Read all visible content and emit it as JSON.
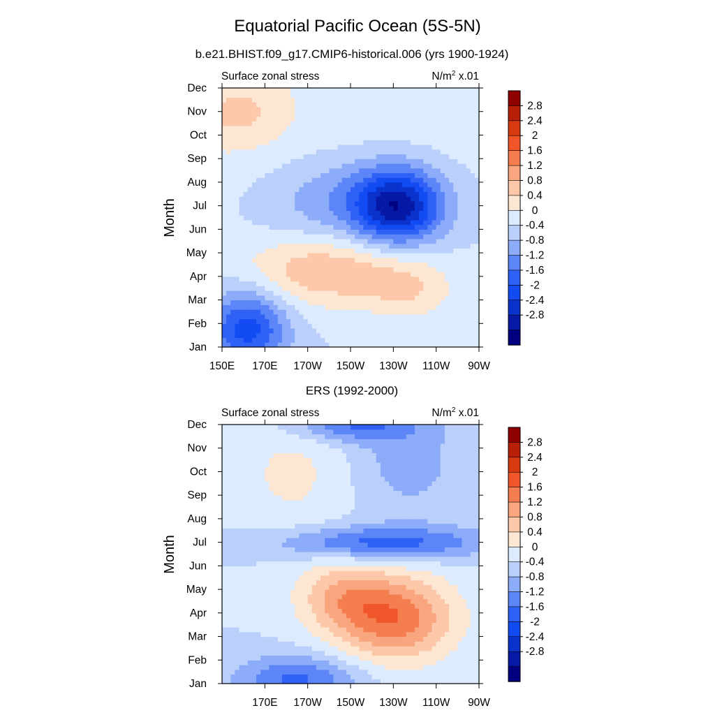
{
  "figure": {
    "title": "Equatorial Pacific Ocean (5S-5N)"
  },
  "chart_data": [
    {
      "type": "heatmap",
      "subtitle": "b.e21.BHIST.f09_g17.CMIP6-historical.006 (yrs 1900-1924)",
      "left_string": "Surface zonal stress",
      "right_string": "N/m",
      "right_exp": "2",
      "right_tail": " x.01",
      "ylabel": "Month",
      "xticks": [
        "150E",
        "170E",
        "170W",
        "150W",
        "130W",
        "110W",
        "90W"
      ],
      "yticks": [
        "Jan",
        "Feb",
        "Mar",
        "Apr",
        "May",
        "Jun",
        "Jul",
        "Aug",
        "Sep",
        "Oct",
        "Nov",
        "Dec"
      ],
      "xlim": [
        150,
        270
      ],
      "ylim": [
        1,
        12
      ],
      "grid": false,
      "legend": "right (colorbar)",
      "fields": [
        {
          "x": 232,
          "y": 7.0,
          "sx": 14,
          "sy": 1.1,
          "amp": -2.3
        },
        {
          "x": 210,
          "y": 7.2,
          "sx": 30,
          "sy": 1.5,
          "amp": -0.9
        },
        {
          "x": 200,
          "y": 4.3,
          "sx": 28,
          "sy": 1.1,
          "amp": 1.2
        },
        {
          "x": 238,
          "y": 3.4,
          "sx": 14,
          "sy": 0.9,
          "amp": 0.6
        },
        {
          "x": 162,
          "y": 1.8,
          "sx": 13,
          "sy": 1.2,
          "amp": -1.8
        },
        {
          "x": 158,
          "y": 11.0,
          "sx": 14,
          "sy": 1.0,
          "amp": 0.6
        },
        {
          "x": 150,
          "y": 10.5,
          "sx": 110,
          "sy": 3.0,
          "amp": 0.35
        }
      ]
    },
    {
      "type": "heatmap",
      "subtitle": "ERS (1992-2000)",
      "left_string": "Surface zonal stress",
      "right_string": "N/m",
      "right_exp": "2",
      "right_tail": " x.01",
      "ylabel": "Month",
      "xticks": [
        "170E",
        "170W",
        "150W",
        "130W",
        "110W",
        "90W"
      ],
      "yticks": [
        "Jan",
        "Feb",
        "Mar",
        "Apr",
        "May",
        "Jun",
        "Jul",
        "Aug",
        "Sep",
        "Oct",
        "Nov",
        "Dec"
      ],
      "xlim": [
        150,
        270
      ],
      "ylim": [
        1,
        12
      ],
      "grid": false,
      "legend": "right (colorbar)",
      "fields": [
        {
          "x": 230,
          "y": 3.8,
          "sx": 20,
          "sy": 1.3,
          "amp": 1.9
        },
        {
          "x": 205,
          "y": 4.8,
          "sx": 15,
          "sy": 1.0,
          "amp": 0.9
        },
        {
          "x": 225,
          "y": 7.0,
          "sx": 35,
          "sy": 0.5,
          "amp": -1.4
        },
        {
          "x": 185,
          "y": 1.2,
          "sx": 20,
          "sy": 0.7,
          "amp": -1.3
        },
        {
          "x": 210,
          "y": 12.0,
          "sx": 20,
          "sy": 0.5,
          "amp": -1.2
        },
        {
          "x": 235,
          "y": 10.5,
          "sx": 20,
          "sy": 1.8,
          "amp": -0.6
        },
        {
          "x": 185,
          "y": 10.0,
          "sx": 22,
          "sy": 2.0,
          "amp": 0.5
        }
      ]
    }
  ],
  "colorbar": {
    "levels": [
      "2.8",
      "2.4",
      "2",
      "1.6",
      "1.2",
      "0.8",
      "0.4",
      "0",
      "-0.4",
      "-0.8",
      "-1.2",
      "-1.6",
      "-2",
      "-2.4",
      "-2.8"
    ],
    "colors": [
      "#000080",
      "#0519A6",
      "#0A32CC",
      "#124BF2",
      "#2F61F6",
      "#5C86F7",
      "#8CACF9",
      "#BAD0FB",
      "#DCEBFD",
      "#FDE6D2",
      "#FCC8A9",
      "#F9A57E",
      "#F57E50",
      "#F0562A",
      "#D83A10",
      "#B81F06",
      "#8F0000"
    ]
  }
}
